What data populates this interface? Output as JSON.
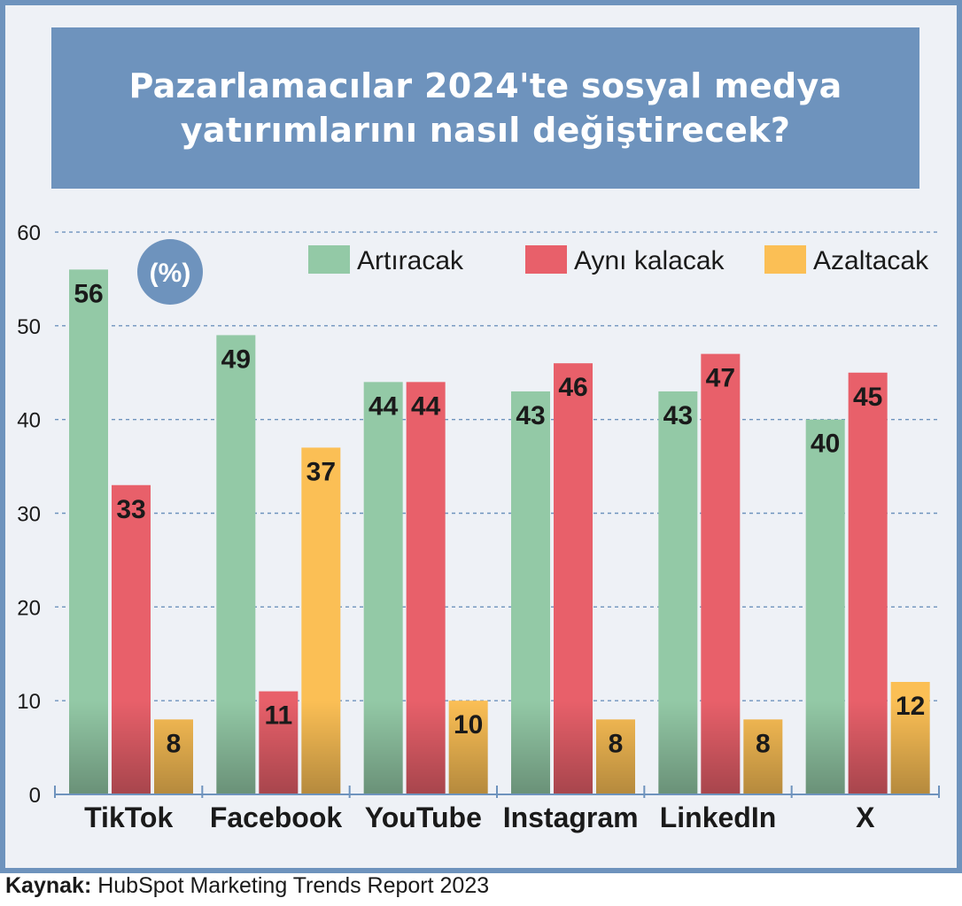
{
  "title": {
    "line1": "Pazarlamacılar 2024'te sosyal medya",
    "line2": "yatırımlarını nasıl değiştirecek?"
  },
  "unit_badge": "(%)",
  "source": {
    "label": "Kaynak:",
    "text": "HubSpot Marketing Trends Report 2023"
  },
  "colors": {
    "frame": "#6e93bd",
    "background": "#eef1f6",
    "grid": "#6e93bd"
  },
  "chart_data": {
    "type": "bar",
    "categories": [
      "TikTok",
      "Facebook",
      "YouTube",
      "Instagram",
      "LinkedIn",
      "X"
    ],
    "series": [
      {
        "name": "Artıracak",
        "color": "#93c9a6",
        "values": [
          56,
          49,
          44,
          43,
          43,
          40
        ]
      },
      {
        "name": "Aynı kalacak",
        "color": "#e8606a",
        "values": [
          33,
          11,
          44,
          46,
          47,
          45
        ]
      },
      {
        "name": "Azaltacak",
        "color": "#fbbf55",
        "values": [
          8,
          37,
          10,
          8,
          8,
          12
        ]
      }
    ],
    "yticks": [
      0,
      10,
      20,
      30,
      40,
      50,
      60
    ],
    "ylim": [
      0,
      60
    ],
    "grid": true,
    "legend_position": "top-right",
    "data_labels": true
  }
}
